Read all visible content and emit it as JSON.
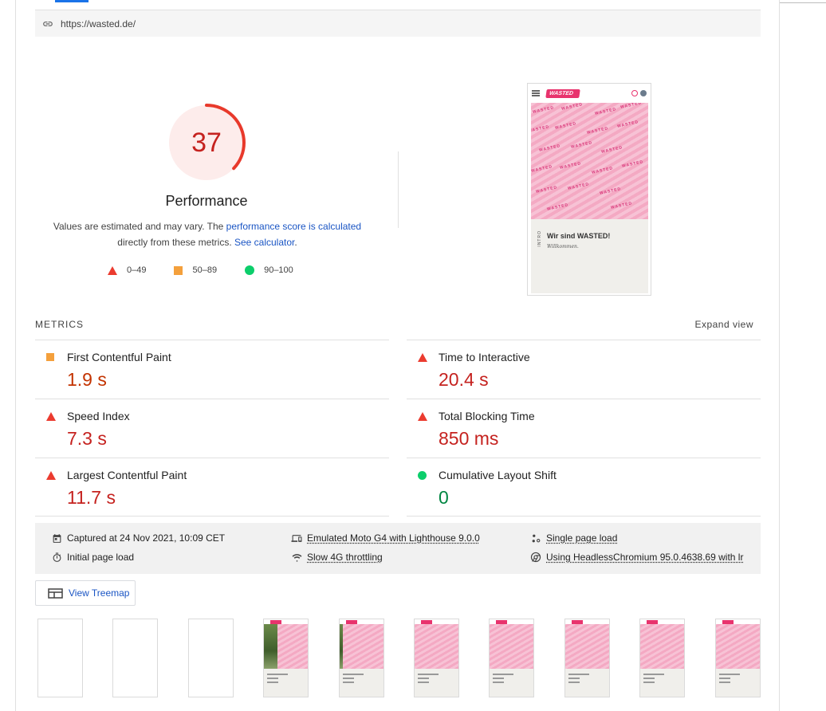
{
  "url": "https://wasted.de/",
  "gauge": {
    "score": "37",
    "fraction": 0.37,
    "title": "Performance",
    "color": "#c5221f"
  },
  "description": {
    "text1": "Values are estimated and may vary. The ",
    "link1": "performance score is calculated",
    "text2": "directly from these metrics. ",
    "link2": "See calculator",
    "text3": "."
  },
  "legend": [
    {
      "shape": "triangle",
      "color": "#eb3b2f",
      "label": "0–49"
    },
    {
      "shape": "square",
      "color": "#f4a03c",
      "label": "50–89"
    },
    {
      "shape": "circle",
      "color": "#0cce6b",
      "label": "90–100"
    }
  ],
  "screenshot": {
    "logo": "WASTED",
    "watermark": "WASTED",
    "heading": "Wir sind WASTED!",
    "subtext": "Willkommen.",
    "side_label": "INTRO"
  },
  "metrics": {
    "title": "METRICS",
    "expand_label": "Expand view",
    "items": [
      {
        "label": "First Contentful Paint",
        "value": "1.9 s",
        "rating": "average"
      },
      {
        "label": "Time to Interactive",
        "value": "20.4 s",
        "rating": "fail"
      },
      {
        "label": "Speed Index",
        "value": "7.3 s",
        "rating": "fail"
      },
      {
        "label": "Total Blocking Time",
        "value": "850 ms",
        "rating": "fail"
      },
      {
        "label": "Largest Contentful Paint",
        "value": "11.7 s",
        "rating": "fail"
      },
      {
        "label": "Cumulative Layout Shift",
        "value": "0",
        "rating": "pass"
      }
    ]
  },
  "runtime": {
    "captured": "Captured at 24 Nov 2021, 10:09 CET",
    "initial": "Initial page load",
    "device": "Emulated Moto G4 with Lighthouse 9.0.0",
    "throttling": "Slow 4G throttling",
    "single": "Single page load",
    "browser": "Using HeadlessChromium 95.0.4638.69 with lr"
  },
  "treemap_label": "View Treemap",
  "filmstrip_frames": [
    "blank",
    "blank",
    "blank",
    "loading",
    "loading",
    "loaded",
    "loaded",
    "loaded",
    "loaded",
    "loaded"
  ],
  "colors": {
    "fail": "#c5221f",
    "average": "#c33300",
    "pass": "#018642",
    "link": "#1a55c4",
    "accent": "#e8336d"
  }
}
